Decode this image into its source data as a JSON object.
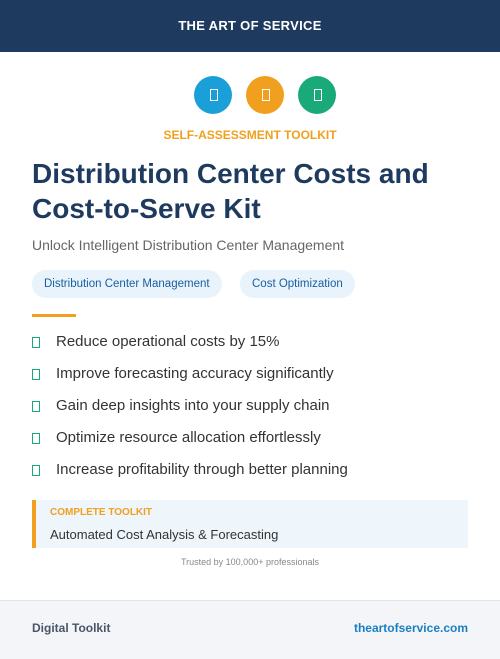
{
  "header": {
    "brand": "THE ART OF SERVICE"
  },
  "kicker": "SELF-ASSESSMENT TOOLKIT",
  "title_lines": [
    "Distribution Center Costs and",
    "Cost-to-Serve Kit"
  ],
  "subtitle": "Unlock Intelligent Distribution Center Management",
  "tags": [
    "Distribution Center Management",
    "Cost Optimization"
  ],
  "benefits": [
    "Reduce operational costs by 15%",
    "Improve forecasting accuracy significantly",
    "Gain deep insights into your supply chain",
    "Optimize resource allocation effortlessly",
    "Increase profitability through better planning"
  ],
  "callout": {
    "label": "COMPLETE TOOLKIT",
    "text": "Automated Cost Analysis & Forecasting"
  },
  "trust": "Trusted by 100,000+ professionals",
  "footer": {
    "left": "Digital Toolkit",
    "right": "theartofservice.com"
  }
}
